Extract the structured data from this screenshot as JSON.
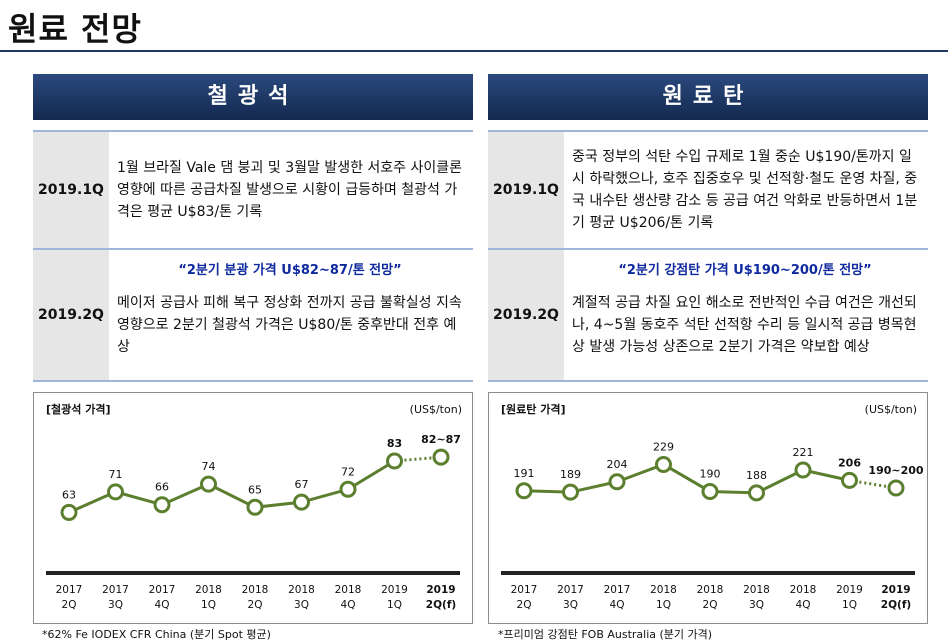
{
  "page": {
    "title": "원료 전망"
  },
  "iron_ore": {
    "header": "철광석",
    "rows": [
      {
        "quarter": "2019.1Q",
        "headline": "",
        "text": "1월 브라질 Vale 댐 붕괴 및 3월말 발생한 서호주 사이클론 영향에 따른 공급차질 발생으로 시황이 급등하며 철광석 가격은 평균 U$83/톤 기록"
      },
      {
        "quarter": "2019.2Q",
        "headline": "“2분기 분광 가격 U$82~87/톤 전망”",
        "text": "메이저 공급사 피해 복구 정상화 전까지 공급 불확실성 지속 영향으로 2분기 철광석 가격은 U$80/톤 중후반대 전후 예상"
      }
    ],
    "footnote": "*62% Fe IODEX CFR China (분기 Spot 평균)"
  },
  "coal": {
    "header": "원료탄",
    "rows": [
      {
        "quarter": "2019.1Q",
        "headline": "",
        "text": "중국 정부의 석탄 수입 규제로 1월 중순 U$190/톤까지 일시 하락했으나, 호주 집중호우 및 선적항·철도 운영 차질, 중국 내수탄 생산량 감소 등 공급 여건 악화로 반등하면서 1분기 평균 U$206/톤 기록"
      },
      {
        "quarter": "2019.2Q",
        "headline": "“2분기 강점탄 가격 U$190~200/톤 전망”",
        "text": "계절적 공급 차질 요인 해소로 전반적인 수급 여건은 개선되나, 4~5월 동호주 석탄 선적항 수리 등 일시적 공급 병목현상 발생 가능성 상존으로 2분기 가격은 약보합 예상"
      }
    ],
    "footnote": "*프리미엄 강점탄 FOB Australia (분기 가격)"
  },
  "chart_data": [
    {
      "type": "line",
      "title": "[철광석 가격]",
      "unit": "(US$/ton)",
      "categories": [
        {
          "year": "2017",
          "q": "2Q"
        },
        {
          "year": "2017",
          "q": "3Q"
        },
        {
          "year": "2017",
          "q": "4Q"
        },
        {
          "year": "2018",
          "q": "1Q"
        },
        {
          "year": "2018",
          "q": "2Q"
        },
        {
          "year": "2018",
          "q": "3Q"
        },
        {
          "year": "2018",
          "q": "4Q"
        },
        {
          "year": "2019",
          "q": "1Q"
        },
        {
          "year": "2019",
          "q": "2Q(f)"
        }
      ],
      "values": [
        63,
        71,
        66,
        74,
        65,
        67,
        72,
        83,
        84.5
      ],
      "labels": [
        "63",
        "71",
        "66",
        "74",
        "65",
        "67",
        "72",
        "83",
        "82~87"
      ],
      "forecast_from_index": 7,
      "bold_indices": [
        7,
        8
      ],
      "ylim": [
        55,
        90
      ],
      "color": "#5b7f2e"
    },
    {
      "type": "line",
      "title": "[원료탄 가격]",
      "unit": "(US$/ton)",
      "categories": [
        {
          "year": "2017",
          "q": "2Q"
        },
        {
          "year": "2017",
          "q": "3Q"
        },
        {
          "year": "2017",
          "q": "4Q"
        },
        {
          "year": "2018",
          "q": "1Q"
        },
        {
          "year": "2018",
          "q": "2Q"
        },
        {
          "year": "2018",
          "q": "3Q"
        },
        {
          "year": "2018",
          "q": "4Q"
        },
        {
          "year": "2019",
          "q": "1Q"
        },
        {
          "year": "2019",
          "q": "2Q(f)"
        }
      ],
      "values": [
        191,
        189,
        204,
        229,
        190,
        188,
        221,
        206,
        195
      ],
      "labels": [
        "191",
        "189",
        "204",
        "229",
        "190",
        "188",
        "221",
        "206",
        "190~200"
      ],
      "forecast_from_index": 7,
      "bold_indices": [
        7,
        8
      ],
      "ylim": [
        130,
        260
      ],
      "color": "#5b7f2e"
    }
  ]
}
